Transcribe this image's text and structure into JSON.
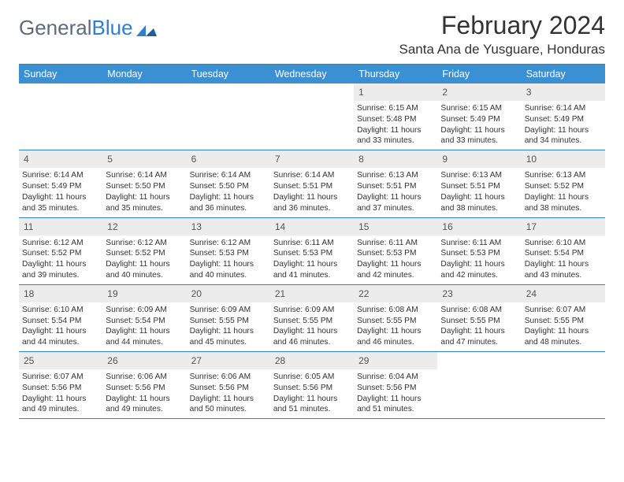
{
  "brand": {
    "part1": "General",
    "part2": "Blue"
  },
  "title": "February 2024",
  "location": "Santa Ana de Yusguare, Honduras",
  "colors": {
    "header_bg": "#3b8fd3",
    "rule": "#2f7fcf",
    "daynum_bg": "#ececec",
    "text": "#333333",
    "logo_gray": "#5b6c7c",
    "logo_blue": "#2f7fcf"
  },
  "dow": [
    "Sunday",
    "Monday",
    "Tuesday",
    "Wednesday",
    "Thursday",
    "Friday",
    "Saturday"
  ],
  "weeks": [
    [
      null,
      null,
      null,
      null,
      {
        "n": "1",
        "sunrise": "6:15 AM",
        "sunset": "5:48 PM",
        "day_h": "11",
        "day_m": "33"
      },
      {
        "n": "2",
        "sunrise": "6:15 AM",
        "sunset": "5:49 PM",
        "day_h": "11",
        "day_m": "33"
      },
      {
        "n": "3",
        "sunrise": "6:14 AM",
        "sunset": "5:49 PM",
        "day_h": "11",
        "day_m": "34"
      }
    ],
    [
      {
        "n": "4",
        "sunrise": "6:14 AM",
        "sunset": "5:49 PM",
        "day_h": "11",
        "day_m": "35"
      },
      {
        "n": "5",
        "sunrise": "6:14 AM",
        "sunset": "5:50 PM",
        "day_h": "11",
        "day_m": "35"
      },
      {
        "n": "6",
        "sunrise": "6:14 AM",
        "sunset": "5:50 PM",
        "day_h": "11",
        "day_m": "36"
      },
      {
        "n": "7",
        "sunrise": "6:14 AM",
        "sunset": "5:51 PM",
        "day_h": "11",
        "day_m": "36"
      },
      {
        "n": "8",
        "sunrise": "6:13 AM",
        "sunset": "5:51 PM",
        "day_h": "11",
        "day_m": "37"
      },
      {
        "n": "9",
        "sunrise": "6:13 AM",
        "sunset": "5:51 PM",
        "day_h": "11",
        "day_m": "38"
      },
      {
        "n": "10",
        "sunrise": "6:13 AM",
        "sunset": "5:52 PM",
        "day_h": "11",
        "day_m": "38"
      }
    ],
    [
      {
        "n": "11",
        "sunrise": "6:12 AM",
        "sunset": "5:52 PM",
        "day_h": "11",
        "day_m": "39"
      },
      {
        "n": "12",
        "sunrise": "6:12 AM",
        "sunset": "5:52 PM",
        "day_h": "11",
        "day_m": "40"
      },
      {
        "n": "13",
        "sunrise": "6:12 AM",
        "sunset": "5:53 PM",
        "day_h": "11",
        "day_m": "40"
      },
      {
        "n": "14",
        "sunrise": "6:11 AM",
        "sunset": "5:53 PM",
        "day_h": "11",
        "day_m": "41"
      },
      {
        "n": "15",
        "sunrise": "6:11 AM",
        "sunset": "5:53 PM",
        "day_h": "11",
        "day_m": "42"
      },
      {
        "n": "16",
        "sunrise": "6:11 AM",
        "sunset": "5:53 PM",
        "day_h": "11",
        "day_m": "42"
      },
      {
        "n": "17",
        "sunrise": "6:10 AM",
        "sunset": "5:54 PM",
        "day_h": "11",
        "day_m": "43"
      }
    ],
    [
      {
        "n": "18",
        "sunrise": "6:10 AM",
        "sunset": "5:54 PM",
        "day_h": "11",
        "day_m": "44"
      },
      {
        "n": "19",
        "sunrise": "6:09 AM",
        "sunset": "5:54 PM",
        "day_h": "11",
        "day_m": "44"
      },
      {
        "n": "20",
        "sunrise": "6:09 AM",
        "sunset": "5:55 PM",
        "day_h": "11",
        "day_m": "45"
      },
      {
        "n": "21",
        "sunrise": "6:09 AM",
        "sunset": "5:55 PM",
        "day_h": "11",
        "day_m": "46"
      },
      {
        "n": "22",
        "sunrise": "6:08 AM",
        "sunset": "5:55 PM",
        "day_h": "11",
        "day_m": "46"
      },
      {
        "n": "23",
        "sunrise": "6:08 AM",
        "sunset": "5:55 PM",
        "day_h": "11",
        "day_m": "47"
      },
      {
        "n": "24",
        "sunrise": "6:07 AM",
        "sunset": "5:55 PM",
        "day_h": "11",
        "day_m": "48"
      }
    ],
    [
      {
        "n": "25",
        "sunrise": "6:07 AM",
        "sunset": "5:56 PM",
        "day_h": "11",
        "day_m": "49"
      },
      {
        "n": "26",
        "sunrise": "6:06 AM",
        "sunset": "5:56 PM",
        "day_h": "11",
        "day_m": "49"
      },
      {
        "n": "27",
        "sunrise": "6:06 AM",
        "sunset": "5:56 PM",
        "day_h": "11",
        "day_m": "50"
      },
      {
        "n": "28",
        "sunrise": "6:05 AM",
        "sunset": "5:56 PM",
        "day_h": "11",
        "day_m": "51"
      },
      {
        "n": "29",
        "sunrise": "6:04 AM",
        "sunset": "5:56 PM",
        "day_h": "11",
        "day_m": "51"
      },
      null,
      null
    ]
  ],
  "labels": {
    "sunrise": "Sunrise:",
    "sunset": "Sunset:",
    "daylight": "Daylight:",
    "hours": "hours",
    "and": "and",
    "minutes": "minutes."
  }
}
